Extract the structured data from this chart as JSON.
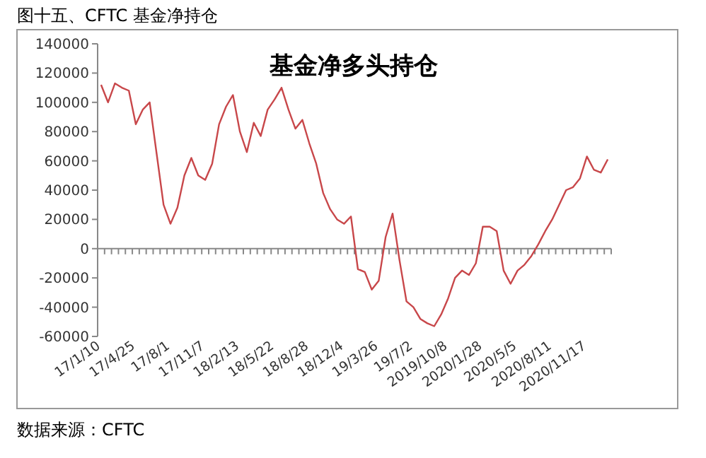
{
  "chart_data": {
    "type": "line",
    "title": "图十五、CFTC 基金净持仓",
    "subtitle": "基金净多头持仓",
    "annotations": [
      "数据来源：CFTC"
    ],
    "categories": [
      "17/1/10",
      null,
      null,
      null,
      null,
      "17/4/25",
      null,
      null,
      null,
      null,
      "17/8/1",
      null,
      null,
      null,
      null,
      "17/11/7",
      null,
      null,
      null,
      null,
      "18/2/13",
      null,
      null,
      null,
      null,
      "18/5/22",
      null,
      null,
      null,
      null,
      "18/8/28",
      null,
      null,
      null,
      null,
      "18/12/4",
      null,
      null,
      null,
      null,
      "19/3/26",
      null,
      null,
      null,
      null,
      "19/7/2",
      null,
      null,
      null,
      null,
      "2019/10/8",
      null,
      null,
      null,
      null,
      "2020/1/28",
      null,
      null,
      null,
      null,
      "2020/5/5",
      null,
      null,
      null,
      null,
      "2020/8/11",
      null,
      null,
      null,
      null,
      "2020/11/17",
      null,
      null,
      null
    ],
    "series": [
      {
        "color": "#c8474a",
        "values": [
          112000,
          100000,
          113000,
          110000,
          108000,
          85000,
          95000,
          100000,
          65000,
          30000,
          17000,
          28000,
          50000,
          62000,
          50000,
          47000,
          58000,
          85000,
          97000,
          105000,
          80000,
          66000,
          86000,
          77000,
          95000,
          102000,
          110000,
          95000,
          82000,
          88000,
          72000,
          58000,
          38000,
          27000,
          20000,
          17000,
          22000,
          -14000,
          -16000,
          -28000,
          -22000,
          8000,
          24000,
          -8000,
          -36000,
          -40000,
          -48000,
          -51000,
          -53000,
          -45000,
          -34000,
          -20000,
          -15000,
          -18000,
          -10000,
          15000,
          15000,
          12000,
          -15000,
          -24000,
          -15000,
          -11000,
          -5000,
          3000,
          12000,
          20000,
          30000,
          40000,
          42000,
          48000,
          63000,
          54000,
          52000,
          61000
        ]
      }
    ],
    "ylim": [
      -60000,
      140000
    ],
    "yticks": [
      -60000,
      -40000,
      -20000,
      0,
      20000,
      40000,
      60000,
      80000,
      100000,
      120000,
      140000
    ]
  }
}
